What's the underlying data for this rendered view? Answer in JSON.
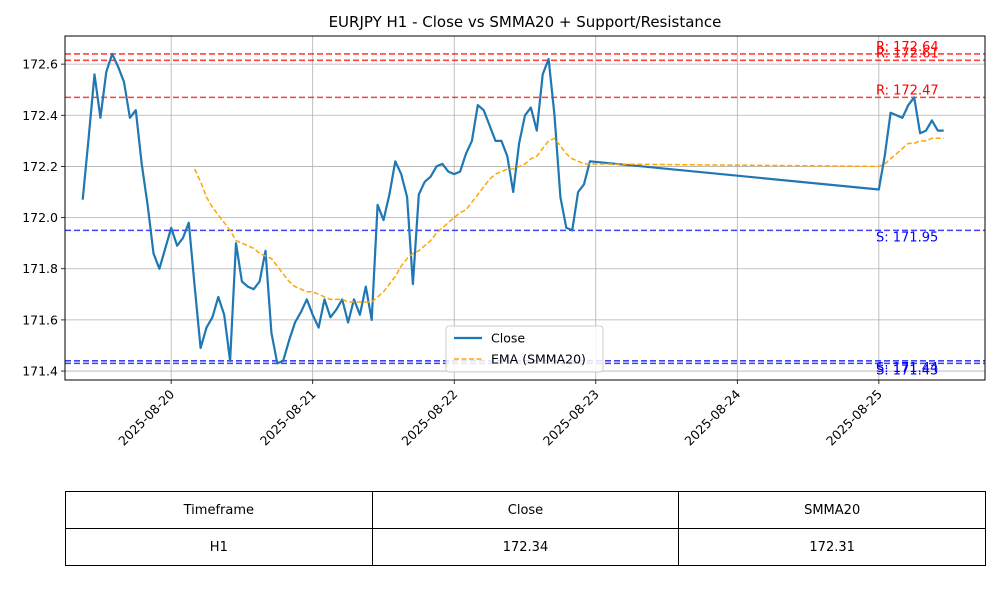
{
  "chart_data": {
    "type": "line",
    "title": "EURJPY H1 - Close vs SMMA20 + Support/Resistance",
    "xlabel": "",
    "ylabel": "",
    "x_ticks": [
      "2025-08-20",
      "2025-08-21",
      "2025-08-22",
      "2025-08-23",
      "2025-08-24",
      "2025-08-25"
    ],
    "y_ticks": [
      "171.4",
      "171.6",
      "171.8",
      "172.0",
      "172.2",
      "172.4",
      "172.6"
    ],
    "ylim": [
      171.365,
      172.71
    ],
    "xlim": [
      "2025-08-19T06:00",
      "2025-08-25T18:00"
    ],
    "grid": true,
    "legend_position": "lower center",
    "series": [
      {
        "name": "Close",
        "color": "#1f77b4",
        "style": "solid",
        "points": [
          [
            "2025-08-19T09:00",
            172.07
          ],
          [
            "2025-08-19T10:00",
            172.31
          ],
          [
            "2025-08-19T11:00",
            172.56
          ],
          [
            "2025-08-19T12:00",
            172.39
          ],
          [
            "2025-08-19T13:00",
            172.57
          ],
          [
            "2025-08-19T14:00",
            172.64
          ],
          [
            "2025-08-19T15:00",
            172.59
          ],
          [
            "2025-08-19T16:00",
            172.53
          ],
          [
            "2025-08-19T17:00",
            172.39
          ],
          [
            "2025-08-19T18:00",
            172.42
          ],
          [
            "2025-08-19T19:00",
            172.21
          ],
          [
            "2025-08-19T20:00",
            172.05
          ],
          [
            "2025-08-19T21:00",
            171.86
          ],
          [
            "2025-08-19T22:00",
            171.8
          ],
          [
            "2025-08-19T23:00",
            171.88
          ],
          [
            "2025-08-20T00:00",
            171.96
          ],
          [
            "2025-08-20T01:00",
            171.89
          ],
          [
            "2025-08-20T02:00",
            171.92
          ],
          [
            "2025-08-20T03:00",
            171.98
          ],
          [
            "2025-08-20T04:00",
            171.73
          ],
          [
            "2025-08-20T05:00",
            171.49
          ],
          [
            "2025-08-20T06:00",
            171.57
          ],
          [
            "2025-08-20T07:00",
            171.61
          ],
          [
            "2025-08-20T08:00",
            171.69
          ],
          [
            "2025-08-20T09:00",
            171.62
          ],
          [
            "2025-08-20T10:00",
            171.44
          ],
          [
            "2025-08-20T11:00",
            171.9
          ],
          [
            "2025-08-20T12:00",
            171.75
          ],
          [
            "2025-08-20T13:00",
            171.73
          ],
          [
            "2025-08-20T14:00",
            171.72
          ],
          [
            "2025-08-20T15:00",
            171.75
          ],
          [
            "2025-08-20T16:00",
            171.87
          ],
          [
            "2025-08-20T17:00",
            171.55
          ],
          [
            "2025-08-20T18:00",
            171.43
          ],
          [
            "2025-08-20T19:00",
            171.44
          ],
          [
            "2025-08-20T20:00",
            171.52
          ],
          [
            "2025-08-20T21:00",
            171.59
          ],
          [
            "2025-08-20T22:00",
            171.63
          ],
          [
            "2025-08-20T23:00",
            171.68
          ],
          [
            "2025-08-21T00:00",
            171.62
          ],
          [
            "2025-08-21T01:00",
            171.57
          ],
          [
            "2025-08-21T02:00",
            171.68
          ],
          [
            "2025-08-21T03:00",
            171.61
          ],
          [
            "2025-08-21T04:00",
            171.64
          ],
          [
            "2025-08-21T05:00",
            171.68
          ],
          [
            "2025-08-21T06:00",
            171.59
          ],
          [
            "2025-08-21T07:00",
            171.68
          ],
          [
            "2025-08-21T08:00",
            171.62
          ],
          [
            "2025-08-21T09:00",
            171.73
          ],
          [
            "2025-08-21T10:00",
            171.6
          ],
          [
            "2025-08-21T11:00",
            172.05
          ],
          [
            "2025-08-21T12:00",
            171.99
          ],
          [
            "2025-08-21T13:00",
            172.09
          ],
          [
            "2025-08-21T14:00",
            172.22
          ],
          [
            "2025-08-21T15:00",
            172.17
          ],
          [
            "2025-08-21T16:00",
            172.08
          ],
          [
            "2025-08-21T17:00",
            171.74
          ],
          [
            "2025-08-21T18:00",
            172.09
          ],
          [
            "2025-08-21T19:00",
            172.14
          ],
          [
            "2025-08-21T20:00",
            172.16
          ],
          [
            "2025-08-21T21:00",
            172.2
          ],
          [
            "2025-08-21T22:00",
            172.21
          ],
          [
            "2025-08-21T23:00",
            172.18
          ],
          [
            "2025-08-22T00:00",
            172.17
          ],
          [
            "2025-08-22T01:00",
            172.18
          ],
          [
            "2025-08-22T02:00",
            172.25
          ],
          [
            "2025-08-22T03:00",
            172.3
          ],
          [
            "2025-08-22T04:00",
            172.44
          ],
          [
            "2025-08-22T05:00",
            172.42
          ],
          [
            "2025-08-22T06:00",
            172.36
          ],
          [
            "2025-08-22T07:00",
            172.3
          ],
          [
            "2025-08-22T08:00",
            172.3
          ],
          [
            "2025-08-22T09:00",
            172.24
          ],
          [
            "2025-08-22T10:00",
            172.1
          ],
          [
            "2025-08-22T11:00",
            172.29
          ],
          [
            "2025-08-22T12:00",
            172.4
          ],
          [
            "2025-08-22T13:00",
            172.43
          ],
          [
            "2025-08-22T14:00",
            172.34
          ],
          [
            "2025-08-22T15:00",
            172.56
          ],
          [
            "2025-08-22T16:00",
            172.62
          ],
          [
            "2025-08-22T17:00",
            172.4
          ],
          [
            "2025-08-22T18:00",
            172.08
          ],
          [
            "2025-08-22T19:00",
            171.96
          ],
          [
            "2025-08-22T20:00",
            171.95
          ],
          [
            "2025-08-22T21:00",
            172.1
          ],
          [
            "2025-08-22T22:00",
            172.13
          ],
          [
            "2025-08-22T23:00",
            172.22
          ],
          [
            "2025-08-25T00:00",
            172.11
          ],
          [
            "2025-08-25T01:00",
            172.24
          ],
          [
            "2025-08-25T02:00",
            172.41
          ],
          [
            "2025-08-25T03:00",
            172.4
          ],
          [
            "2025-08-25T04:00",
            172.39
          ],
          [
            "2025-08-25T05:00",
            172.44
          ],
          [
            "2025-08-25T06:00",
            172.47
          ],
          [
            "2025-08-25T07:00",
            172.33
          ],
          [
            "2025-08-25T08:00",
            172.34
          ],
          [
            "2025-08-25T09:00",
            172.38
          ],
          [
            "2025-08-25T10:00",
            172.34
          ],
          [
            "2025-08-25T11:00",
            172.34
          ]
        ]
      },
      {
        "name": "EMA (SMMA20)",
        "color": "#ffa500",
        "style": "dashed",
        "points": [
          [
            "2025-08-20T04:00",
            172.19
          ],
          [
            "2025-08-20T05:00",
            172.14
          ],
          [
            "2025-08-20T06:00",
            172.08
          ],
          [
            "2025-08-20T07:00",
            172.04
          ],
          [
            "2025-08-20T08:00",
            172.01
          ],
          [
            "2025-08-20T09:00",
            171.98
          ],
          [
            "2025-08-20T10:00",
            171.95
          ],
          [
            "2025-08-20T11:00",
            171.91
          ],
          [
            "2025-08-20T12:00",
            171.9
          ],
          [
            "2025-08-20T13:00",
            171.89
          ],
          [
            "2025-08-20T14:00",
            171.88
          ],
          [
            "2025-08-20T15:00",
            171.86
          ],
          [
            "2025-08-20T16:00",
            171.85
          ],
          [
            "2025-08-20T17:00",
            171.84
          ],
          [
            "2025-08-20T18:00",
            171.81
          ],
          [
            "2025-08-20T19:00",
            171.78
          ],
          [
            "2025-08-20T20:00",
            171.75
          ],
          [
            "2025-08-20T21:00",
            171.73
          ],
          [
            "2025-08-20T22:00",
            171.72
          ],
          [
            "2025-08-20T23:00",
            171.71
          ],
          [
            "2025-08-21T00:00",
            171.71
          ],
          [
            "2025-08-21T01:00",
            171.7
          ],
          [
            "2025-08-21T02:00",
            171.69
          ],
          [
            "2025-08-21T03:00",
            171.68
          ],
          [
            "2025-08-21T04:00",
            171.68
          ],
          [
            "2025-08-21T05:00",
            171.68
          ],
          [
            "2025-08-21T06:00",
            171.67
          ],
          [
            "2025-08-21T07:00",
            171.67
          ],
          [
            "2025-08-21T08:00",
            171.67
          ],
          [
            "2025-08-21T09:00",
            171.67
          ],
          [
            "2025-08-21T10:00",
            171.67
          ],
          [
            "2025-08-21T11:00",
            171.69
          ],
          [
            "2025-08-21T12:00",
            171.71
          ],
          [
            "2025-08-21T13:00",
            171.74
          ],
          [
            "2025-08-21T14:00",
            171.77
          ],
          [
            "2025-08-21T15:00",
            171.81
          ],
          [
            "2025-08-21T16:00",
            171.84
          ],
          [
            "2025-08-21T17:00",
            171.86
          ],
          [
            "2025-08-21T18:00",
            171.87
          ],
          [
            "2025-08-21T19:00",
            171.89
          ],
          [
            "2025-08-21T20:00",
            171.91
          ],
          [
            "2025-08-21T21:00",
            171.94
          ],
          [
            "2025-08-21T22:00",
            171.96
          ],
          [
            "2025-08-21T23:00",
            171.98
          ],
          [
            "2025-08-22T00:00",
            172.0
          ],
          [
            "2025-08-22T01:00",
            172.02
          ],
          [
            "2025-08-22T02:00",
            172.03
          ],
          [
            "2025-08-22T03:00",
            172.06
          ],
          [
            "2025-08-22T04:00",
            172.09
          ],
          [
            "2025-08-22T05:00",
            172.12
          ],
          [
            "2025-08-22T06:00",
            172.15
          ],
          [
            "2025-08-22T07:00",
            172.17
          ],
          [
            "2025-08-22T08:00",
            172.18
          ],
          [
            "2025-08-22T09:00",
            172.19
          ],
          [
            "2025-08-22T10:00",
            172.19
          ],
          [
            "2025-08-22T11:00",
            172.2
          ],
          [
            "2025-08-22T12:00",
            172.21
          ],
          [
            "2025-08-22T13:00",
            172.23
          ],
          [
            "2025-08-22T14:00",
            172.24
          ],
          [
            "2025-08-22T15:00",
            172.27
          ],
          [
            "2025-08-22T16:00",
            172.3
          ],
          [
            "2025-08-22T17:00",
            172.31
          ],
          [
            "2025-08-22T18:00",
            172.28
          ],
          [
            "2025-08-22T19:00",
            172.25
          ],
          [
            "2025-08-22T20:00",
            172.23
          ],
          [
            "2025-08-22T21:00",
            172.22
          ],
          [
            "2025-08-22T22:00",
            172.21
          ],
          [
            "2025-08-22T23:00",
            172.21
          ],
          [
            "2025-08-25T00:00",
            172.2
          ],
          [
            "2025-08-25T01:00",
            172.21
          ],
          [
            "2025-08-25T02:00",
            172.23
          ],
          [
            "2025-08-25T03:00",
            172.25
          ],
          [
            "2025-08-25T04:00",
            172.27
          ],
          [
            "2025-08-25T05:00",
            172.29
          ],
          [
            "2025-08-25T06:00",
            172.29
          ],
          [
            "2025-08-25T07:00",
            172.3
          ],
          [
            "2025-08-25T08:00",
            172.3
          ],
          [
            "2025-08-25T09:00",
            172.31
          ],
          [
            "2025-08-25T10:00",
            172.31
          ],
          [
            "2025-08-25T11:00",
            172.31
          ]
        ]
      }
    ],
    "levels": [
      {
        "kind": "resistance",
        "label": "R: 172.64",
        "value": 172.64,
        "color": "#ff0000"
      },
      {
        "kind": "resistance",
        "label": "R: 172.61",
        "value": 172.615,
        "color": "#ff0000"
      },
      {
        "kind": "resistance",
        "label": "R: 172.47",
        "value": 172.47,
        "color": "#ff0000"
      },
      {
        "kind": "support",
        "label": "S: 171.95",
        "value": 171.95,
        "color": "#0000ff"
      },
      {
        "kind": "support",
        "label": "S: 171.44",
        "value": 171.44,
        "color": "#0000ff"
      },
      {
        "kind": "support",
        "label": "S: 171.43",
        "value": 171.43,
        "color": "#0000ff"
      }
    ]
  },
  "table": {
    "headers": [
      "Timeframe",
      "Close",
      "SMMA20"
    ],
    "rows": [
      [
        "H1",
        "172.34",
        "172.31"
      ]
    ]
  }
}
